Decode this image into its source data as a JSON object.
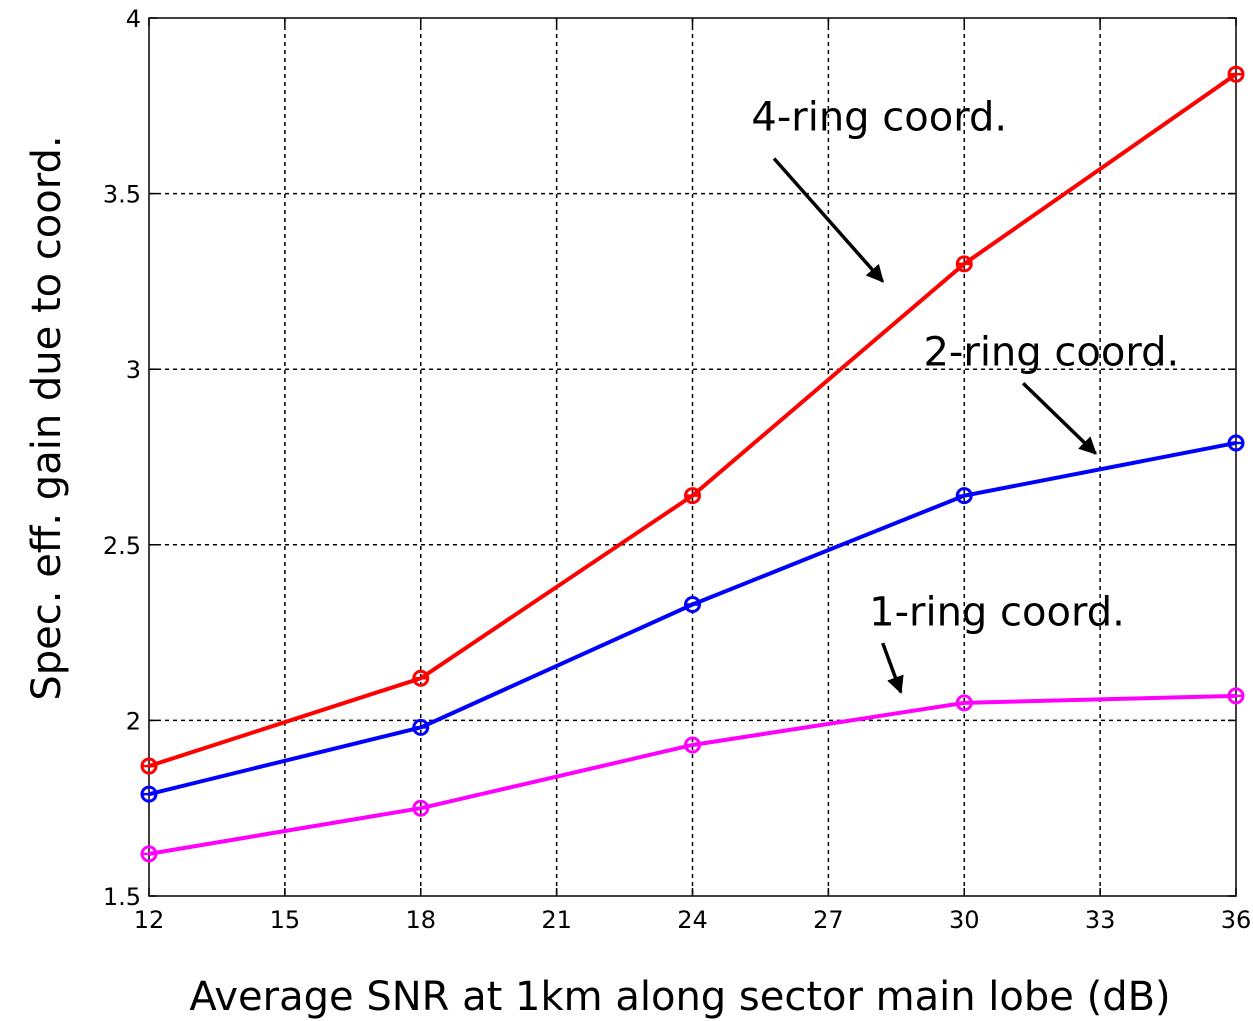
{
  "chart_data": {
    "type": "line",
    "title": "",
    "xlabel": "Average SNR at 1km along sector main lobe (dB)",
    "ylabel": "Spec. eff. gain due to coord.",
    "xlim": [
      12,
      36
    ],
    "ylim": [
      1.5,
      4
    ],
    "grid": true,
    "x_ticks": [
      12,
      15,
      18,
      21,
      24,
      27,
      30,
      33,
      36
    ],
    "x_tick_labels": [
      "12",
      "15",
      "18",
      "21",
      "24",
      "27",
      "30",
      "33",
      "36"
    ],
    "y_ticks": [
      1.5,
      2,
      2.5,
      3,
      3.5,
      4
    ],
    "y_tick_labels": [
      "1.5",
      "2",
      "2.5",
      "3",
      "3.5",
      "4"
    ],
    "x": [
      12,
      18,
      24,
      30,
      36
    ],
    "series": [
      {
        "key": "four_ring",
        "color": "#ff0000",
        "marker": "circle",
        "values": [
          1.87,
          2.12,
          2.64,
          3.3,
          3.84
        ]
      },
      {
        "key": "two_ring",
        "color": "#0000ff",
        "marker": "circle",
        "values": [
          1.79,
          1.98,
          2.33,
          2.64,
          2.79
        ]
      },
      {
        "key": "one_ring",
        "color": "#ff00ff",
        "marker": "circle",
        "values": [
          1.62,
          1.75,
          1.93,
          2.05,
          2.07
        ]
      }
    ],
    "annotations": [
      {
        "text": "4-ring coord.",
        "series": "four_ring",
        "text_x": 25.3,
        "text_y": 3.68,
        "arrow_from": [
          25.8,
          3.6
        ],
        "arrow_to": [
          28.2,
          3.25
        ]
      },
      {
        "text": "2-ring coord.",
        "series": "two_ring",
        "text_x": 29.1,
        "text_y": 3.01,
        "arrow_from": [
          31.3,
          2.96
        ],
        "arrow_to": [
          32.9,
          2.76
        ]
      },
      {
        "text": "1-ring coord.",
        "series": "one_ring",
        "text_x": 27.9,
        "text_y": 2.27,
        "arrow_from": [
          28.2,
          2.22
        ],
        "arrow_to": [
          28.6,
          2.08
        ]
      }
    ]
  }
}
